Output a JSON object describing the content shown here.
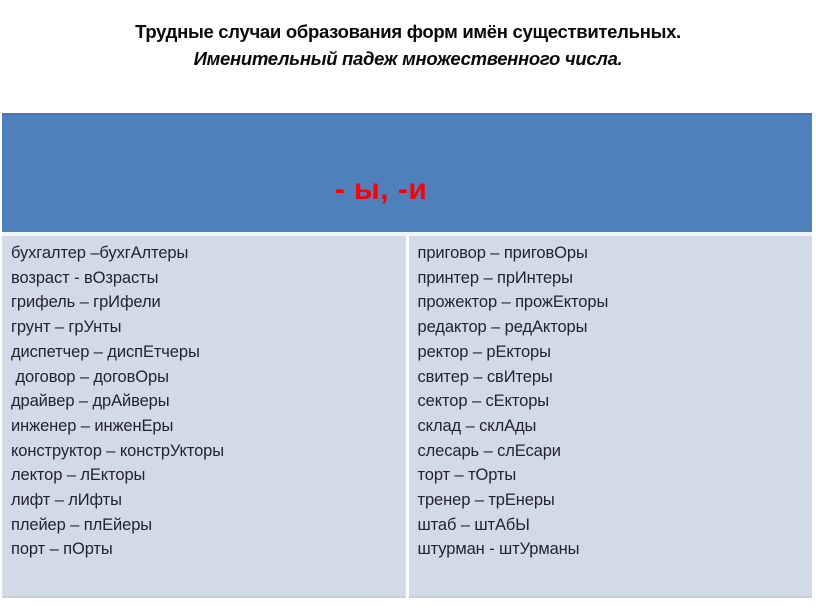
{
  "title": {
    "line1": "Трудные случаи образования форм имён существительных.",
    "line2": "Именительный падеж множественного числа."
  },
  "table": {
    "header_label": "- ы, -и",
    "left_column": [
      "бухгалтер –бухгАлтеры",
      "возраст - вОзрасты",
      "грифель – грИфели",
      "грунт – грУнты",
      "диспетчер – диспЕтчеры",
      " договор – договОры",
      "драйвер – дрАйверы",
      "инженер – инженЕры",
      "конструктор – констрУкторы",
      "лектор – лЕкторы",
      "лифт – лИфты",
      "плейер – плЕйеры",
      "порт – пОрты"
    ],
    "right_column": [
      "приговор – приговОры",
      "принтер – прИнтеры",
      "прожектор – прожЕкторы",
      "редактор – редАкторы",
      "ректор – рЕкторы",
      "свитер – свИтеры",
      "сектор – сЕкторы",
      "склад – склАды",
      "слесарь – слЕсари",
      "торт – тОрты",
      "тренер – трЕнеры",
      "штаб – штАбЫ",
      "штурман - штУрманы"
    ]
  },
  "colors": {
    "header_blue": "#4E80BC",
    "header_text_red": "#FF0000",
    "body_lavender": "#D3DAE7",
    "divider_white": "#FFFFFF",
    "title_black": "#0A0A0A",
    "body_text": "#21252E"
  }
}
